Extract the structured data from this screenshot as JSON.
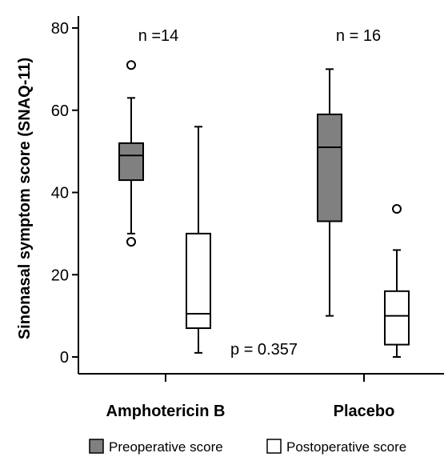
{
  "chart_data": {
    "type": "boxplot",
    "title": "",
    "ylabel": "Sinonasal symptom score (SNAQ-11)",
    "xlabel": "",
    "ylim": [
      -4,
      82
    ],
    "yticks": [
      0,
      20,
      40,
      60,
      80
    ],
    "grid": false,
    "legend_position": "bottom",
    "categories": [
      "Amphotericin B",
      "Placebo"
    ],
    "series": [
      {
        "name": "Preoperative score",
        "fill": "#808080",
        "boxes": [
          {
            "category": "Amphotericin B",
            "whisker_low": 30,
            "q1": 43,
            "median": 49,
            "q3": 52,
            "whisker_high": 63,
            "outliers": [
              71,
              28
            ]
          },
          {
            "category": "Placebo",
            "whisker_low": 10,
            "q1": 33,
            "median": 51,
            "q3": 59,
            "whisker_high": 70,
            "outliers": []
          }
        ]
      },
      {
        "name": "Postoperative score",
        "fill": "#ffffff",
        "boxes": [
          {
            "category": "Amphotericin B",
            "whisker_low": 1,
            "q1": 7,
            "median": 10.5,
            "q3": 30,
            "whisker_high": 56,
            "outliers": []
          },
          {
            "category": "Placebo",
            "whisker_low": 0,
            "q1": 3,
            "median": 10,
            "q3": 16,
            "whisker_high": 26,
            "outliers": [
              36
            ]
          }
        ]
      }
    ],
    "annotations": [
      {
        "text": "n =14",
        "category": "Amphotericin B",
        "y": 78
      },
      {
        "text": "n = 16",
        "category": "Placebo",
        "y": 78
      },
      {
        "text": "p = 0.357",
        "category": "Amphotericin B",
        "y": 1.5
      }
    ]
  }
}
